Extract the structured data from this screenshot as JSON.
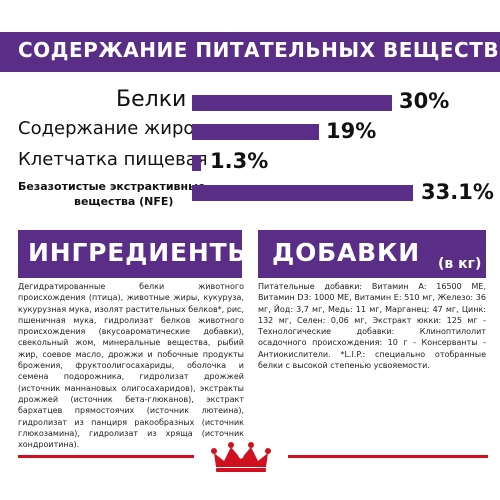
{
  "header": {
    "title": "СОДЕРЖАНИЕ ПИТАТЕЛЬНЫХ ВЕЩЕСТВ"
  },
  "nutrients": [
    {
      "label": "Белки",
      "value": "30%",
      "percent": 30
    },
    {
      "label": "Содержание жиров",
      "value": "19%",
      "percent": 19
    },
    {
      "label": "Клетчатка пищевая",
      "value": "1.3%",
      "percent": 1.3
    },
    {
      "label_line1": "Безазотистые экстрактивные",
      "label_line2": "вещества (NFE)",
      "value": "33.1%",
      "percent": 33.1
    }
  ],
  "ingredients": {
    "title": "ИНГРЕДИЕНТЫ",
    "text": "Дегидратированные белки животного происхождения (птица), животные жиры, кукуруза, кукурузная мука, изолят растительных белков*, рис, пшеничная мука, гидролизат белков животного происхождения (вкусоароматические добавки), свекольный жом, минеральные вещества, рыбий жир, соевое масло, дрожжи и побочные продукты брожения, фруктоолигосахариды, оболочка и семена подорожника, гидролизат дрожжей (источник маннановых олигосахаридов), экстракты дрожжей (источник бета-глюканов), экстракт бархатцев прямостоячих (источник лютеина), гидролизат из панциря ракообразных (источник глюкозамина), гидролизат из хряща (источник хондроитина)."
  },
  "additives": {
    "title": "ДОБАВКИ",
    "unit": "(в кг)",
    "text": "Питательные добавки: Витамин А: 16500 МЕ, Витамин D3: 1000 МЕ, Витамин Е: 510 мг, Железо: 36 мг, Йод: 3,7 мг, Медь: 11 мг, Марганец: 47 мг, Цинк: 132 мг, Селен: 0,06 мг, Экстракт юкки: 125 мг - Технологические добавки: Клиноптилолит осадочного происхождения: 10 г - Консерванты - Антиокислители. *L.I.P.: специально отобранные белки с высокой степенью усвояемости."
  },
  "brand": {
    "logo": "royal-canin-crown-logo"
  },
  "colors": {
    "accent": "#5a2e86",
    "red": "#d0101f"
  }
}
